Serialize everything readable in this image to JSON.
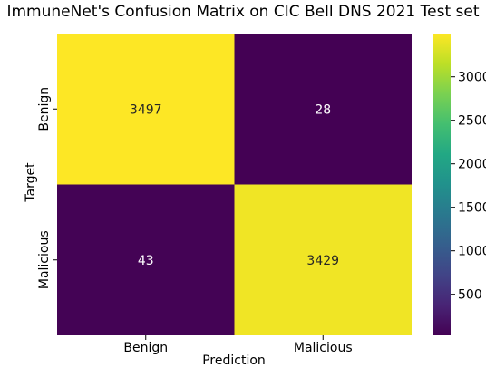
{
  "chart_data": {
    "type": "heatmap",
    "title": "ImmuneNet's Confusion Matrix on CIC Bell DNS 2021 Test set",
    "xlabel": "Prediction",
    "ylabel": "Target",
    "x_categories": [
      "Benign",
      "Malicious"
    ],
    "y_categories": [
      "Benign",
      "Malicious"
    ],
    "values": [
      [
        3497,
        28
      ],
      [
        43,
        3429
      ]
    ],
    "colormap": "viridis",
    "colorbar": {
      "ticks": [
        500,
        1000,
        1500,
        2000,
        2500,
        3000
      ],
      "range": [
        28,
        3497
      ]
    },
    "colors": {
      "dark_cell": "#440154",
      "bright_cell": "#fde725",
      "dark_cell_text": "#ffffff",
      "bright_cell_text": "#262626"
    }
  }
}
